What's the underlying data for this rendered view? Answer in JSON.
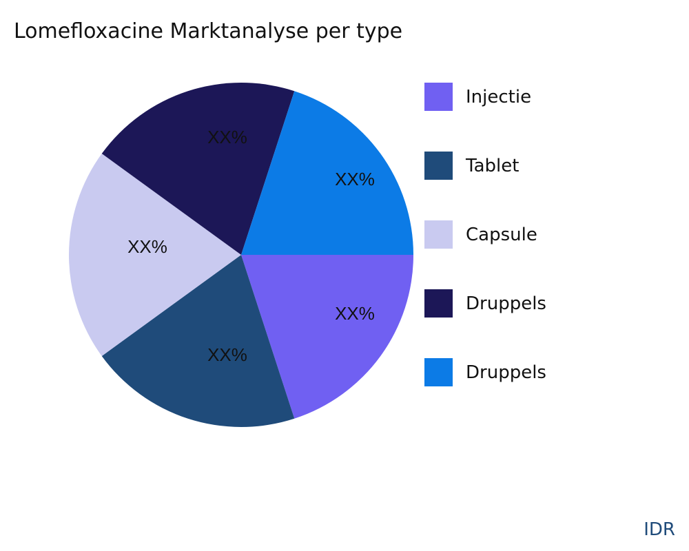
{
  "chart_data": {
    "type": "pie",
    "title": "Lomefloxacine Marktanalyse per type",
    "slices": [
      {
        "name": "Injectie",
        "value": 20,
        "label": "XX%",
        "color": "#7060F2"
      },
      {
        "name": "Tablet",
        "value": 20,
        "label": "XX%",
        "color": "#1F4B7A"
      },
      {
        "name": "Capsule",
        "value": 20,
        "label": "XX%",
        "color": "#C9CAF0"
      },
      {
        "name": "Druppels",
        "value": 20,
        "label": "XX%",
        "color": "#1C1757"
      },
      {
        "name": "Druppels",
        "value": 20,
        "label": "XX%",
        "color": "#0C7BE6"
      }
    ],
    "legend_position": "right"
  },
  "brand": "IDR"
}
